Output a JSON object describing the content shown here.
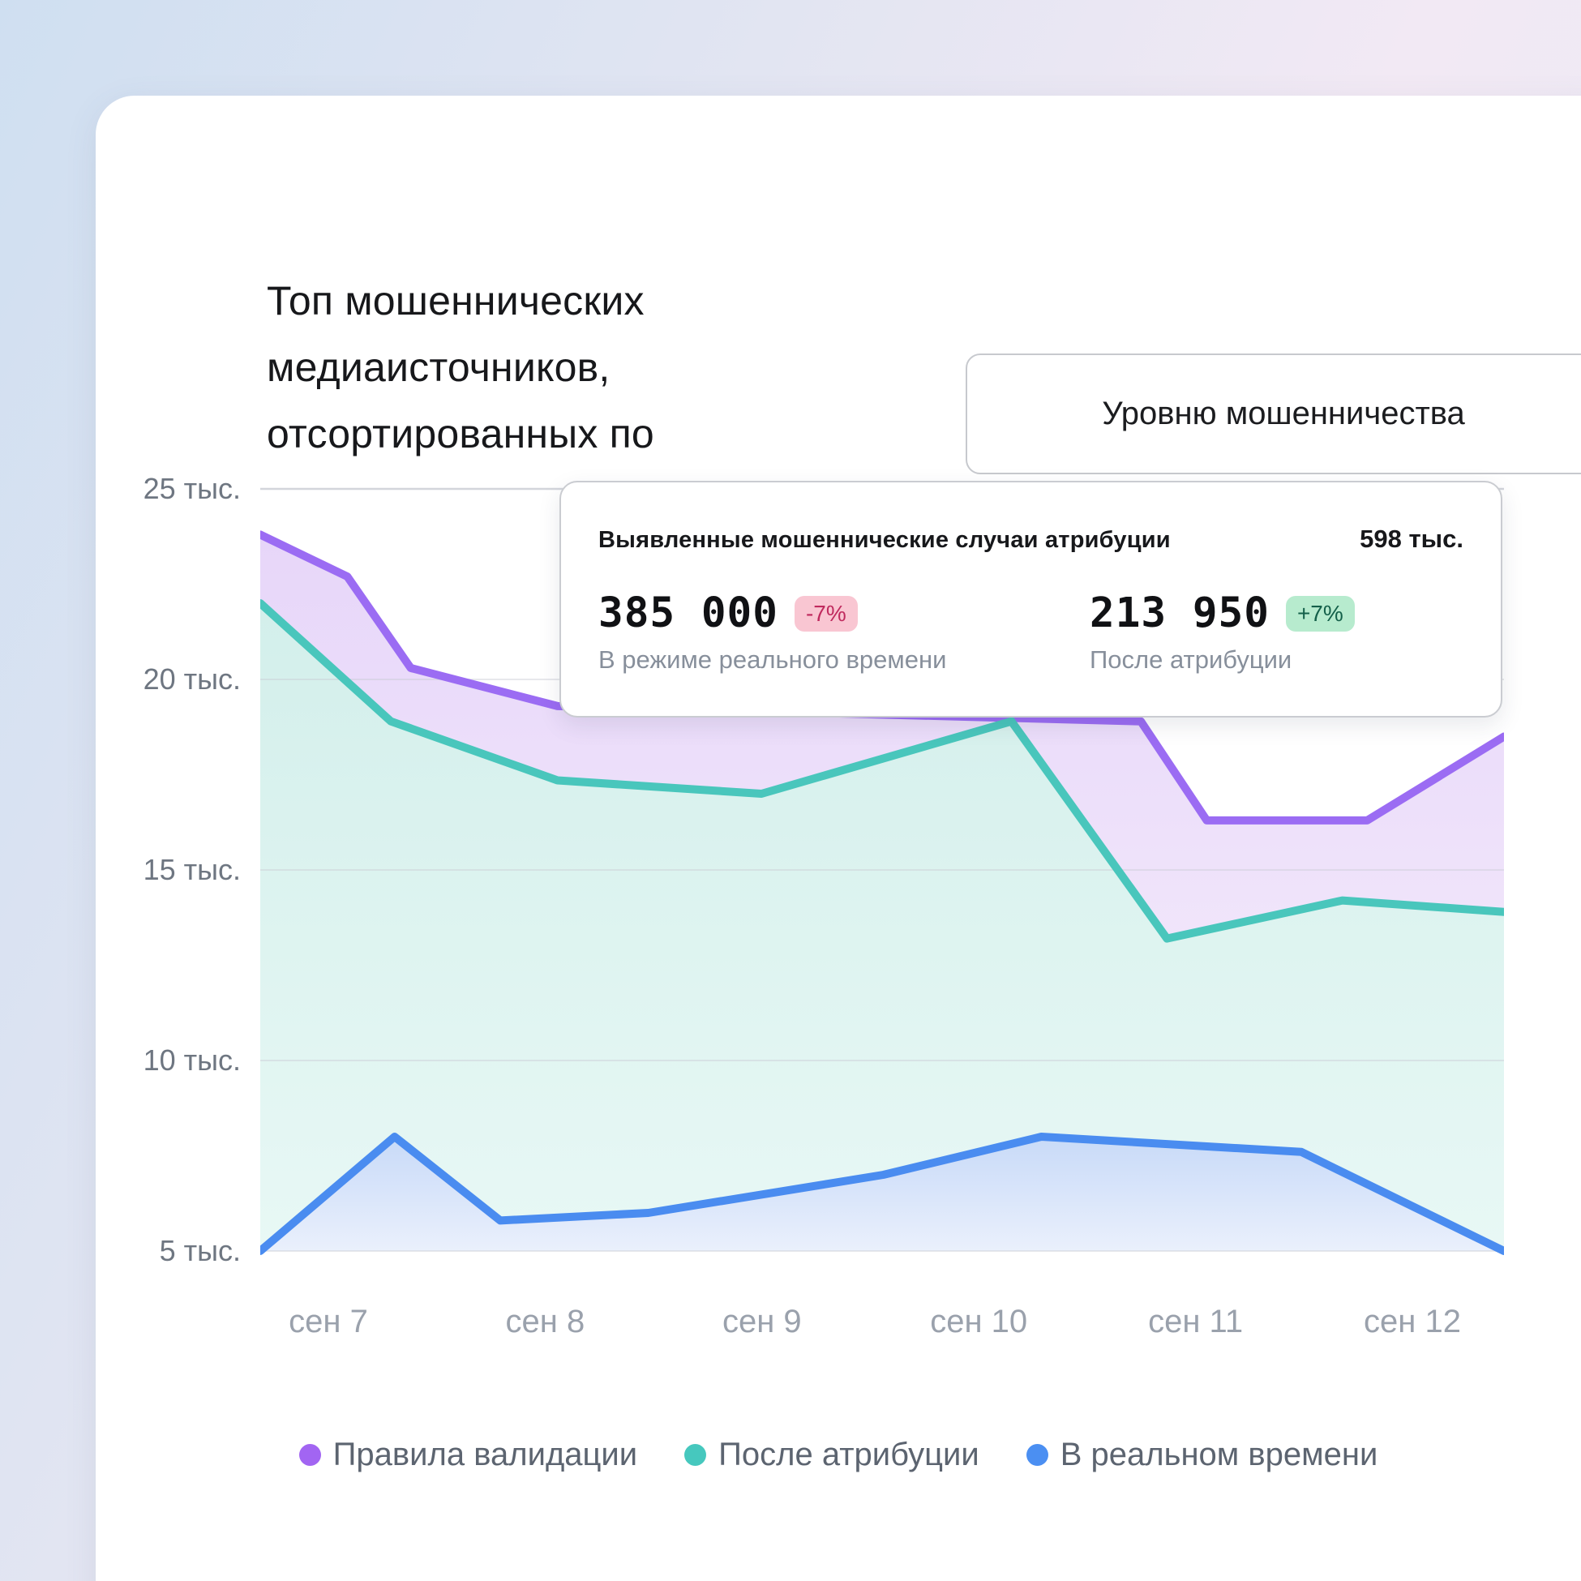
{
  "header": {
    "title_lines": [
      "Топ мошеннических",
      "медиаисточников,",
      "отсортированных по"
    ],
    "sort_button_label": "Уровню мошенничества"
  },
  "tooltip": {
    "title": "Выявленные мошеннические случаи атрибуции",
    "total": "598 тыс.",
    "metrics": [
      {
        "value": "385 000",
        "delta": "-7%",
        "direction": "down",
        "label": "В режиме реального времени"
      },
      {
        "value": "213 950",
        "delta": "+7%",
        "direction": "up",
        "label": "После атрибуции"
      }
    ],
    "badge_colors": {
      "down_bg": "#f9c6d2",
      "down_text": "#c02a5e",
      "up_bg": "#b7ebce",
      "up_text": "#14604a"
    }
  },
  "chart_data": {
    "type": "area",
    "title": "Топ мошеннических медиаисточников, отсортированных по уровню мошенничества",
    "x_labels": [
      "сен 7",
      "сен 8",
      "сен 9",
      "сен 10",
      "сен 11",
      "сен 12"
    ],
    "y_ticks": [
      {
        "label": "25 тыс.",
        "value": 25
      },
      {
        "label": "20 тыс.",
        "value": 20
      },
      {
        "label": "15 тыс.",
        "value": 15
      },
      {
        "label": "10 тыс.",
        "value": 10
      },
      {
        "label": "5 тыс.",
        "value": 5
      }
    ],
    "y_unit": "тыс.",
    "ylim": [
      5,
      25
    ],
    "grid": "horizontal",
    "legend_position": "bottom",
    "series": [
      {
        "name": "Правила валидации",
        "color": "#9b6cf3",
        "fill_from": "#e7d6f9",
        "fill_to": "#f7f0fc",
        "points": [
          [
            0,
            23.8
          ],
          [
            0.07,
            22.7
          ],
          [
            0.121,
            20.3
          ],
          [
            0.239,
            19.3
          ],
          [
            0.708,
            18.9
          ],
          [
            0.761,
            16.3
          ],
          [
            0.89,
            16.3
          ],
          [
            1,
            18.5
          ]
        ]
      },
      {
        "name": "После атрибуции",
        "color": "#49c6bc",
        "fill_from": "#d3efeb",
        "fill_to": "#e8f8f5",
        "points": [
          [
            0,
            22.0
          ],
          [
            0.105,
            18.9
          ],
          [
            0.239,
            17.35
          ],
          [
            0.403,
            17.0
          ],
          [
            0.604,
            18.9
          ],
          [
            0.729,
            13.2
          ],
          [
            0.87,
            14.2
          ],
          [
            1,
            13.9
          ]
        ]
      },
      {
        "name": "В реальном времени",
        "color": "#4a8cf0",
        "fill_from": "#c8daf8",
        "fill_to": "#eaf0fc",
        "points": [
          [
            0,
            5.0
          ],
          [
            0.108,
            8.0
          ],
          [
            0.193,
            5.8
          ],
          [
            0.312,
            6.0
          ],
          [
            0.501,
            7.0
          ],
          [
            0.628,
            8.0
          ],
          [
            0.837,
            7.6
          ],
          [
            1,
            5.0
          ]
        ]
      }
    ]
  },
  "legend": {
    "items": [
      {
        "label": "Правила валидации",
        "color": "#a265f2"
      },
      {
        "label": "После атрибуции",
        "color": "#46c8be"
      },
      {
        "label": "В реальном времени",
        "color": "#4b8ff2"
      }
    ]
  }
}
